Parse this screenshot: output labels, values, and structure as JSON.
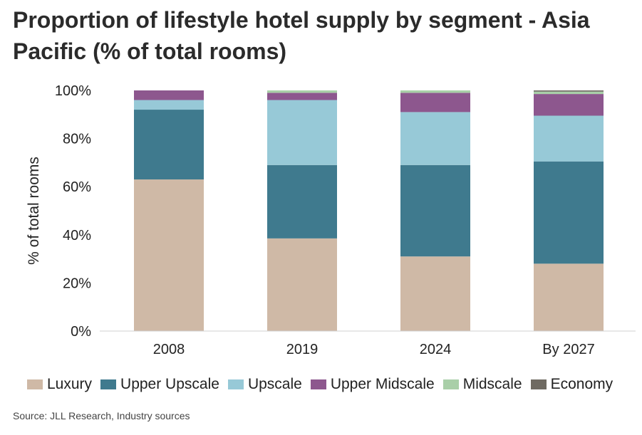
{
  "title": "Proportion of lifestyle hotel supply by segment - Asia Pacific (% of total rooms)",
  "source": "Source: JLL Research, Industry sources",
  "chart_data": {
    "type": "bar",
    "stacked": true,
    "title": "Proportion of lifestyle hotel supply by segment - Asia Pacific (% of total rooms)",
    "xlabel": "",
    "ylabel": "% of total rooms",
    "ylim": [
      0,
      100
    ],
    "yticks": [
      "0%",
      "20%",
      "40%",
      "60%",
      "80%",
      "100%"
    ],
    "categories": [
      "2008",
      "2019",
      "2024",
      "By 2027"
    ],
    "grid": false,
    "legend_position": "bottom",
    "series": [
      {
        "name": "Luxury",
        "color": "#cfb9a6",
        "values": [
          63,
          38.5,
          31,
          28
        ]
      },
      {
        "name": "Upper Upscale",
        "color": "#3f7a8e",
        "values": [
          29,
          30.5,
          38,
          42.5
        ]
      },
      {
        "name": "Upscale",
        "color": "#97c9d7",
        "values": [
          4,
          27,
          22,
          19
        ]
      },
      {
        "name": "Upper Midscale",
        "color": "#8d578e",
        "values": [
          4,
          3,
          8,
          9
        ]
      },
      {
        "name": "Midscale",
        "color": "#a9cfa8",
        "values": [
          0,
          1,
          1,
          1
        ]
      },
      {
        "name": "Economy",
        "color": "#6f6a62",
        "values": [
          0,
          0,
          0,
          0.5
        ]
      }
    ]
  }
}
